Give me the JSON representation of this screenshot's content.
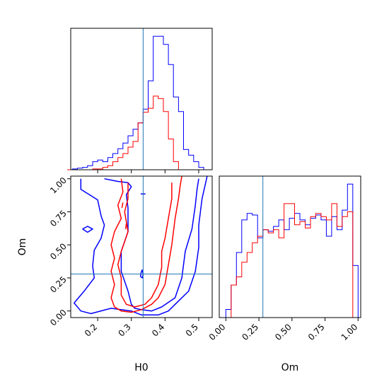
{
  "chart_data": [
    {
      "type": "histogram",
      "panel": "top-left",
      "xlabel": "",
      "ylabel": "",
      "xlim": [
        0.12,
        0.54
      ],
      "truth": {
        "x": 0.335,
        "color": "#1f77b4"
      },
      "bins": [
        0.11,
        0.125,
        0.14,
        0.155,
        0.17,
        0.185,
        0.2,
        0.215,
        0.23,
        0.245,
        0.26,
        0.275,
        0.29,
        0.305,
        0.32,
        0.335,
        0.35,
        0.365,
        0.38,
        0.395,
        0.41,
        0.425,
        0.44,
        0.455,
        0.47,
        0.485,
        0.5,
        0.515,
        0.53
      ],
      "series": [
        {
          "color": "#0000ff",
          "values": [
            0,
            1,
            2,
            3,
            5,
            10,
            12,
            10,
            15,
            20,
            26,
            33,
            42,
            50,
            58,
            75,
            110,
            165,
            165,
            155,
            130,
            90,
            72,
            25,
            18,
            10,
            3,
            0
          ]
        },
        {
          "color": "#ff0000",
          "values": [
            0,
            0,
            0,
            0,
            0,
            1,
            1,
            3,
            5,
            10,
            15,
            20,
            28,
            35,
            58,
            71,
            76,
            91,
            88,
            72,
            38,
            10,
            0,
            0,
            0,
            0,
            0,
            0
          ]
        }
      ]
    },
    {
      "type": "contour",
      "panel": "bottom-left",
      "xlabel": "H0",
      "ylabel": "Om",
      "xlim": [
        0.12,
        0.54
      ],
      "ylim": [
        -0.05,
        1.02
      ],
      "xticks": [
        "0.2",
        "0.3",
        "0.4",
        "0.5"
      ],
      "yticks": [
        "0.00",
        "0.25",
        "0.50",
        "0.75",
        "1.00"
      ],
      "truth": {
        "x": 0.335,
        "y": 0.28,
        "color": "#1f77b4"
      },
      "series": [
        {
          "color": "#0000ff",
          "contours": [
            [
              [
                0.22,
                1.0
              ],
              [
                0.26,
                0.98
              ],
              [
                0.29,
                0.97
              ],
              [
                0.3,
                0.94
              ],
              [
                0.285,
                0.88
              ],
              [
                0.29,
                0.78
              ],
              [
                0.29,
                0.6
              ],
              [
                0.27,
                0.45
              ],
              [
                0.27,
                0.3
              ],
              [
                0.29,
                0.15
              ],
              [
                0.3,
                0.05
              ],
              [
                0.31,
                0.02
              ],
              [
                0.33,
                0.01
              ],
              [
                0.36,
                0.0
              ],
              [
                0.39,
                0.03
              ],
              [
                0.43,
                0.1
              ],
              [
                0.45,
                0.25
              ],
              [
                0.46,
                0.45
              ],
              [
                0.48,
                0.62
              ],
              [
                0.49,
                0.8
              ],
              [
                0.495,
                0.92
              ],
              [
                0.5,
                1.0
              ]
            ],
            [
              [
                0.15,
                1.0
              ],
              [
                0.15,
                0.92
              ],
              [
                0.2,
                0.84
              ],
              [
                0.21,
                0.72
              ],
              [
                0.22,
                0.65
              ],
              [
                0.21,
                0.55
              ],
              [
                0.19,
                0.46
              ],
              [
                0.185,
                0.34
              ],
              [
                0.19,
                0.25
              ],
              [
                0.16,
                0.15
              ],
              [
                0.13,
                0.06
              ],
              [
                0.15,
                0.0
              ],
              [
                0.18,
                -0.02
              ],
              [
                0.24,
                0.02
              ],
              [
                0.3,
                0.0
              ],
              [
                0.33,
                -0.03
              ],
              [
                0.38,
                -0.03
              ],
              [
                0.41,
                0.0
              ],
              [
                0.43,
                0.05
              ],
              [
                0.47,
                0.15
              ],
              [
                0.49,
                0.3
              ],
              [
                0.5,
                0.48
              ],
              [
                0.5,
                0.65
              ],
              [
                0.51,
                0.85
              ],
              [
                0.525,
                1.02
              ]
            ],
            [
              [
                0.155,
                0.62
              ],
              [
                0.17,
                0.64
              ],
              [
                0.185,
                0.62
              ],
              [
                0.17,
                0.595
              ],
              [
                0.155,
                0.62
              ]
            ],
            [
              [
                0.328,
                0.885
              ],
              [
                0.342,
                0.885
              ]
            ],
            [
              [
                0.327,
                0.26
              ],
              [
                0.329,
                0.29
              ],
              [
                0.332,
                0.31
              ],
              [
                0.335,
                0.28
              ],
              [
                0.333,
                0.25
              ],
              [
                0.327,
                0.26
              ]
            ]
          ]
        },
        {
          "color": "#ff0000",
          "contours": [
            [
              [
                0.27,
                1.0
              ],
              [
                0.275,
                0.9
              ],
              [
                0.26,
                0.8
              ],
              [
                0.27,
                0.7
              ],
              [
                0.25,
                0.6
              ],
              [
                0.24,
                0.5
              ],
              [
                0.25,
                0.4
              ],
              [
                0.24,
                0.3
              ],
              [
                0.25,
                0.2
              ],
              [
                0.24,
                0.1
              ],
              [
                0.25,
                0.03
              ],
              [
                0.27,
                0.0
              ],
              [
                0.3,
                -0.01
              ],
              [
                0.33,
                0.01
              ],
              [
                0.36,
                0.05
              ],
              [
                0.38,
                0.1
              ],
              [
                0.4,
                0.2
              ],
              [
                0.41,
                0.35
              ],
              [
                0.42,
                0.5
              ],
              [
                0.43,
                0.7
              ],
              [
                0.44,
                0.85
              ],
              [
                0.445,
                0.95
              ],
              [
                0.45,
                1.02
              ]
            ],
            [
              [
                0.29,
                0.97
              ],
              [
                0.29,
                0.85
              ],
              [
                0.28,
                0.75
              ],
              [
                0.29,
                0.6
              ],
              [
                0.27,
                0.45
              ],
              [
                0.26,
                0.35
              ],
              [
                0.27,
                0.25
              ],
              [
                0.27,
                0.12
              ],
              [
                0.285,
                0.05
              ],
              [
                0.31,
                0.03
              ],
              [
                0.34,
                0.05
              ],
              [
                0.36,
                0.1
              ],
              [
                0.38,
                0.2
              ],
              [
                0.39,
                0.33
              ],
              [
                0.39,
                0.45
              ],
              [
                0.4,
                0.55
              ],
              [
                0.41,
                0.7
              ],
              [
                0.42,
                0.85
              ],
              [
                0.42,
                0.97
              ]
            ],
            [
              [
                0.275,
                0.82
              ],
              [
                0.272,
                0.78
              ]
            ],
            [
              [
                0.285,
                0.66
              ],
              [
                0.283,
                0.62
              ]
            ]
          ]
        }
      ]
    },
    {
      "type": "histogram",
      "panel": "bottom-right",
      "xlabel": "Om",
      "ylabel": "",
      "xlim": [
        -0.05,
        1.02
      ],
      "xticks": [
        "0.00",
        "0.25",
        "0.50",
        "0.75",
        "1.00"
      ],
      "truth": {
        "x": 0.28,
        "color": "#1f77b4"
      },
      "bins": [
        0.0,
        0.04,
        0.08,
        0.12,
        0.16,
        0.2,
        0.24,
        0.28,
        0.32,
        0.36,
        0.4,
        0.44,
        0.48,
        0.52,
        0.56,
        0.6,
        0.64,
        0.68,
        0.72,
        0.76,
        0.8,
        0.84,
        0.88,
        0.92,
        0.96,
        1.0
      ],
      "series": [
        {
          "color": "#0000ff",
          "values": [
            5,
            20,
            40,
            60,
            64,
            63,
            49,
            54,
            53,
            56,
            60,
            54,
            61,
            64,
            60,
            57,
            61,
            63,
            60,
            50,
            62,
            54,
            66,
            82,
            32
          ]
        },
        {
          "color": "#ff0000",
          "values": [
            0,
            20,
            25,
            34,
            40,
            46,
            50,
            54,
            52,
            54,
            49,
            70,
            70,
            57,
            59,
            55,
            62,
            64,
            62,
            60,
            70,
            56,
            62,
            65,
            0
          ]
        }
      ]
    }
  ]
}
